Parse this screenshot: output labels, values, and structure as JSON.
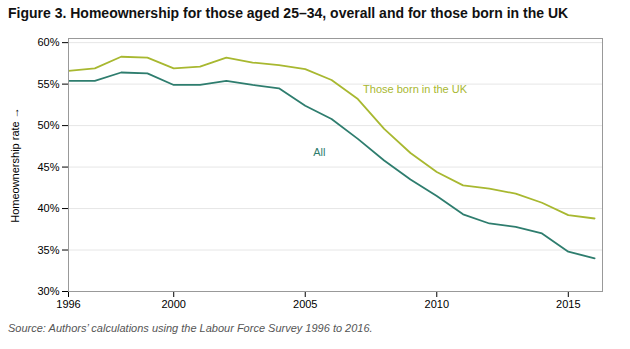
{
  "chart_data": {
    "type": "line",
    "title": "Figure 3. Homeownership for those aged 25–34, overall and for those born in the UK",
    "ylabel": "Homeownership rate",
    "caption": "Source: Authors’ calculations using the Labour Force Survey 1996 to 2016.",
    "x": [
      1996,
      1997,
      1998,
      1999,
      2000,
      2001,
      2002,
      2003,
      2004,
      2005,
      2006,
      2007,
      2008,
      2009,
      2010,
      2011,
      2012,
      2013,
      2014,
      2015,
      2016
    ],
    "series": [
      {
        "name": "All",
        "color": "#2e7d6e",
        "values": [
          0.554,
          0.554,
          0.564,
          0.563,
          0.549,
          0.549,
          0.554,
          0.549,
          0.545,
          0.524,
          0.508,
          0.484,
          0.458,
          0.435,
          0.415,
          0.393,
          0.382,
          0.378,
          0.37,
          0.348,
          0.34
        ]
      },
      {
        "name": "Those born in the UK",
        "color": "#a8b830",
        "values": [
          0.566,
          0.569,
          0.583,
          0.582,
          0.569,
          0.571,
          0.582,
          0.576,
          0.573,
          0.568,
          0.555,
          0.532,
          0.496,
          0.467,
          0.444,
          0.428,
          0.424,
          0.418,
          0.407,
          0.392,
          0.388
        ]
      }
    ],
    "annotations": [
      {
        "text": "All",
        "x": 2005.3,
        "y": 0.468,
        "color": "#2e7d6e"
      },
      {
        "text": "Those born in the UK",
        "x": 2007.2,
        "y": 0.543,
        "color": "#a8b830"
      }
    ],
    "xlim": [
      1996,
      2016.3
    ],
    "xticks": [
      1996,
      2000,
      2005,
      2010,
      2015
    ],
    "ylim": [
      0.3,
      0.605
    ],
    "yticks": [
      {
        "value": 0.3,
        "label": "30%"
      },
      {
        "value": 0.35,
        "label": "35%"
      },
      {
        "value": 0.4,
        "label": "40%"
      },
      {
        "value": 0.45,
        "label": "45%"
      },
      {
        "value": 0.5,
        "label": "50%"
      },
      {
        "value": 0.55,
        "label": "55%"
      },
      {
        "value": 0.6,
        "label": "60%"
      }
    ],
    "grid": true
  }
}
